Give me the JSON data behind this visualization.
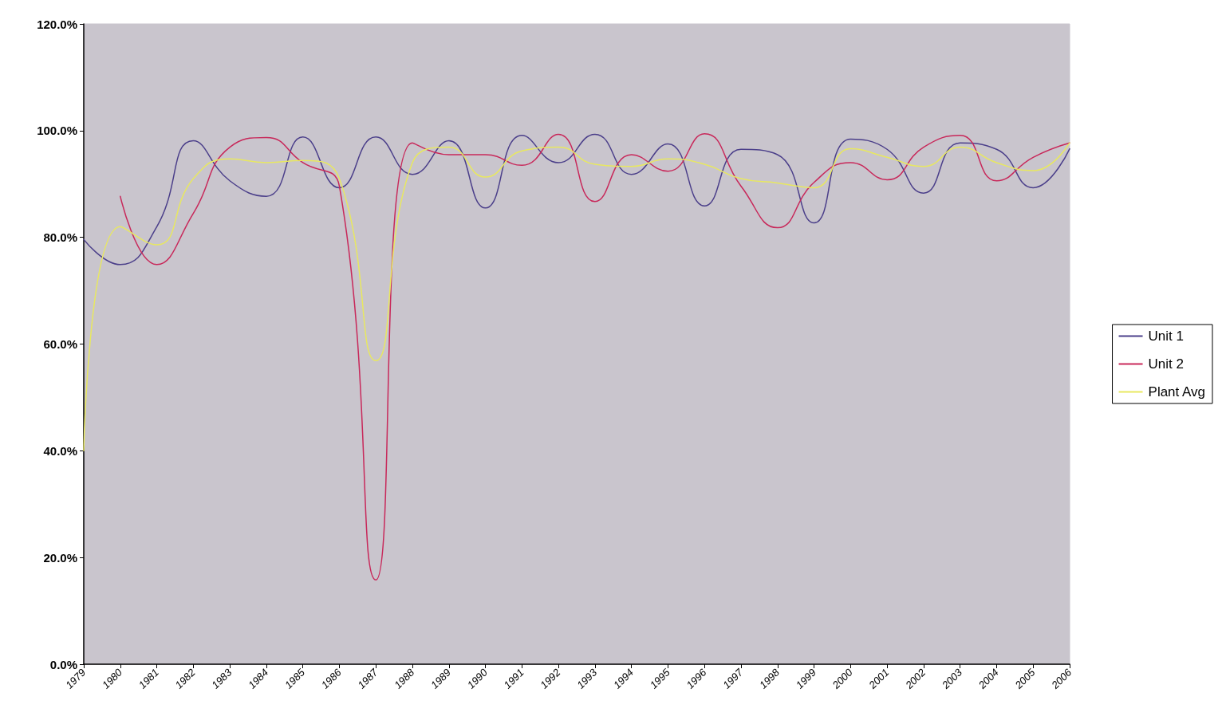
{
  "chart_data": {
    "type": "line",
    "categories": [
      "1979",
      "1980",
      "1981",
      "1982",
      "1983",
      "1984",
      "1985",
      "1986",
      "1987",
      "1988",
      "1989",
      "1990",
      "1991",
      "1992",
      "1993",
      "1994",
      "1995",
      "1996",
      "1997",
      "1998",
      "1999",
      "2000",
      "2001",
      "2002",
      "2003",
      "2004",
      "2005",
      "2006"
    ],
    "series": [
      {
        "name": "Unit 1",
        "color": "#4b3f8a",
        "values": [
          79.6,
          74.9,
          82,
          98.1,
          90.6,
          87.7,
          98.8,
          89.3,
          98.8,
          91.8,
          98.1,
          85.5,
          99.1,
          94,
          99.3,
          91.8,
          97.5,
          85.9,
          96.5,
          95.5,
          82.7,
          98.4,
          96.5,
          88.3,
          97.7,
          96.5,
          89.3,
          96.6
        ]
      },
      {
        "name": "Unit 2",
        "color": "#c8285a",
        "values": [
          null,
          87.7,
          74.9,
          84.5,
          96.9,
          98.7,
          94,
          89.6,
          15.8,
          97.7,
          95.5,
          95.5,
          93.5,
          99.3,
          86.7,
          95.5,
          92.4,
          99.4,
          89.6,
          81.8,
          90.3,
          94,
          90.8,
          96.9,
          99.1,
          90.6,
          95,
          97.7
        ]
      },
      {
        "name": "Plant Avg",
        "color": "#e8e860",
        "values": [
          40,
          82,
          78.6,
          91,
          94.7,
          94,
          94.4,
          91,
          56.9,
          94,
          96.9,
          91.3,
          96.2,
          96.9,
          93.7,
          93.3,
          94.7,
          93.7,
          91,
          90.2,
          89.3,
          96.6,
          95,
          93.3,
          96.9,
          94,
          92.5,
          97.7
        ]
      }
    ],
    "ylim": [
      0,
      120
    ],
    "yticks": [
      {
        "value": 0,
        "label": "0.0%"
      },
      {
        "value": 20,
        "label": "20.0%"
      },
      {
        "value": 40,
        "label": "40.0%"
      },
      {
        "value": 60,
        "label": "60.0%"
      },
      {
        "value": 80,
        "label": "80.0%"
      },
      {
        "value": 100,
        "label": "100.0%"
      },
      {
        "value": 120,
        "label": "120.0%"
      }
    ],
    "grid": false,
    "legend": "right",
    "marker": "none",
    "line_style": "solid"
  }
}
